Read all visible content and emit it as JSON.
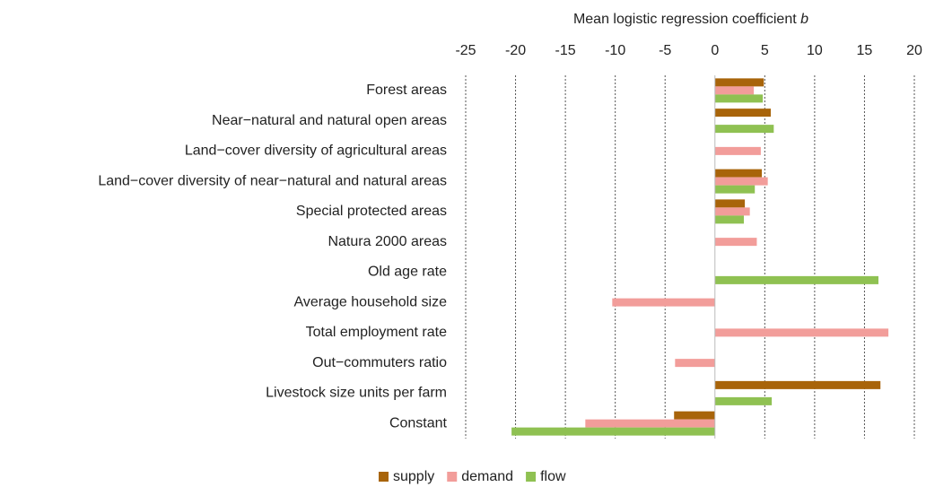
{
  "chart_data": {
    "type": "bar",
    "orientation": "horizontal",
    "xlabel": "Mean logistic regression coefficient",
    "xlabel_symbol": "b",
    "categories": [
      "Forest areas",
      "Near−natural and natural open areas",
      "Land−cover diversity of agricultural areas",
      "Land−cover diversity of near−natural and natural areas",
      "Special protected areas",
      "Natura 2000 areas",
      "Old age rate",
      "Average household size",
      "Total employment rate",
      "Out−commuters ratio",
      "Livestock size units per farm",
      "Constant"
    ],
    "series": [
      {
        "name": "supply",
        "color": "#a8640a",
        "values": [
          4.9,
          5.6,
          null,
          4.7,
          3.0,
          null,
          null,
          null,
          null,
          null,
          16.6,
          -4.1
        ]
      },
      {
        "name": "demand",
        "color": "#f29d9a",
        "values": [
          3.9,
          null,
          4.6,
          5.3,
          3.5,
          4.2,
          null,
          -10.3,
          17.4,
          -4.0,
          null,
          -13.0
        ]
      },
      {
        "name": "flow",
        "color": "#8fc152",
        "values": [
          4.8,
          5.9,
          null,
          4.0,
          2.9,
          null,
          16.4,
          null,
          null,
          null,
          5.7,
          -20.4
        ]
      }
    ],
    "xlim": [
      -25,
      20
    ],
    "xticks": [
      -25,
      -20,
      -15,
      -10,
      -5,
      0,
      5,
      10,
      15,
      20
    ],
    "grid": true,
    "legend": "bottom"
  }
}
